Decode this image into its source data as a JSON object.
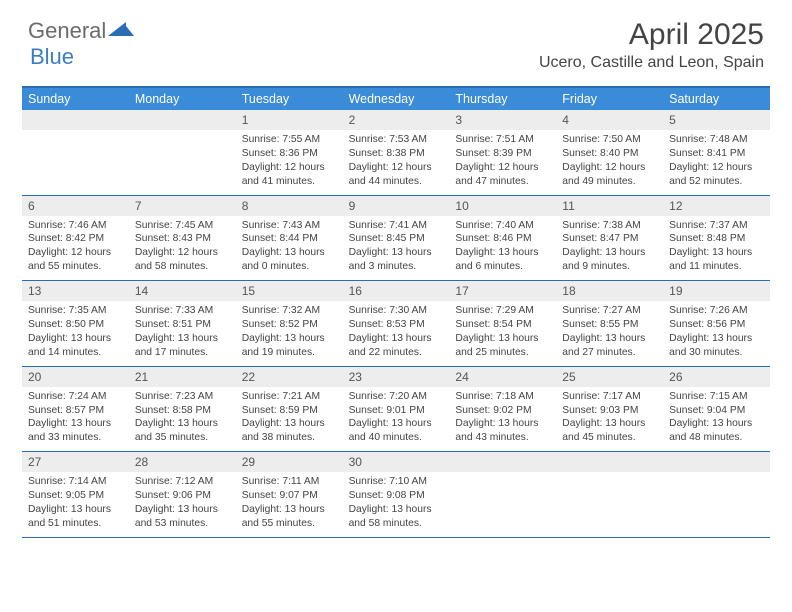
{
  "logo": {
    "text1": "General",
    "text2": "Blue"
  },
  "title": "April 2025",
  "location": "Ucero, Castille and Leon, Spain",
  "colors": {
    "header_bar": "#3a8bd8",
    "border": "#2a6db3",
    "daynum_bg": "#ededed",
    "text": "#444444",
    "logo_gray": "#6b6b6b",
    "logo_blue": "#3a7fc4"
  },
  "dow": [
    "Sunday",
    "Monday",
    "Tuesday",
    "Wednesday",
    "Thursday",
    "Friday",
    "Saturday"
  ],
  "weeks": [
    [
      {
        "n": "",
        "sr": "",
        "ss": "",
        "dl": ""
      },
      {
        "n": "",
        "sr": "",
        "ss": "",
        "dl": ""
      },
      {
        "n": "1",
        "sr": "7:55 AM",
        "ss": "8:36 PM",
        "dl": "12 hours and 41 minutes."
      },
      {
        "n": "2",
        "sr": "7:53 AM",
        "ss": "8:38 PM",
        "dl": "12 hours and 44 minutes."
      },
      {
        "n": "3",
        "sr": "7:51 AM",
        "ss": "8:39 PM",
        "dl": "12 hours and 47 minutes."
      },
      {
        "n": "4",
        "sr": "7:50 AM",
        "ss": "8:40 PM",
        "dl": "12 hours and 49 minutes."
      },
      {
        "n": "5",
        "sr": "7:48 AM",
        "ss": "8:41 PM",
        "dl": "12 hours and 52 minutes."
      }
    ],
    [
      {
        "n": "6",
        "sr": "7:46 AM",
        "ss": "8:42 PM",
        "dl": "12 hours and 55 minutes."
      },
      {
        "n": "7",
        "sr": "7:45 AM",
        "ss": "8:43 PM",
        "dl": "12 hours and 58 minutes."
      },
      {
        "n": "8",
        "sr": "7:43 AM",
        "ss": "8:44 PM",
        "dl": "13 hours and 0 minutes."
      },
      {
        "n": "9",
        "sr": "7:41 AM",
        "ss": "8:45 PM",
        "dl": "13 hours and 3 minutes."
      },
      {
        "n": "10",
        "sr": "7:40 AM",
        "ss": "8:46 PM",
        "dl": "13 hours and 6 minutes."
      },
      {
        "n": "11",
        "sr": "7:38 AM",
        "ss": "8:47 PM",
        "dl": "13 hours and 9 minutes."
      },
      {
        "n": "12",
        "sr": "7:37 AM",
        "ss": "8:48 PM",
        "dl": "13 hours and 11 minutes."
      }
    ],
    [
      {
        "n": "13",
        "sr": "7:35 AM",
        "ss": "8:50 PM",
        "dl": "13 hours and 14 minutes."
      },
      {
        "n": "14",
        "sr": "7:33 AM",
        "ss": "8:51 PM",
        "dl": "13 hours and 17 minutes."
      },
      {
        "n": "15",
        "sr": "7:32 AM",
        "ss": "8:52 PM",
        "dl": "13 hours and 19 minutes."
      },
      {
        "n": "16",
        "sr": "7:30 AM",
        "ss": "8:53 PM",
        "dl": "13 hours and 22 minutes."
      },
      {
        "n": "17",
        "sr": "7:29 AM",
        "ss": "8:54 PM",
        "dl": "13 hours and 25 minutes."
      },
      {
        "n": "18",
        "sr": "7:27 AM",
        "ss": "8:55 PM",
        "dl": "13 hours and 27 minutes."
      },
      {
        "n": "19",
        "sr": "7:26 AM",
        "ss": "8:56 PM",
        "dl": "13 hours and 30 minutes."
      }
    ],
    [
      {
        "n": "20",
        "sr": "7:24 AM",
        "ss": "8:57 PM",
        "dl": "13 hours and 33 minutes."
      },
      {
        "n": "21",
        "sr": "7:23 AM",
        "ss": "8:58 PM",
        "dl": "13 hours and 35 minutes."
      },
      {
        "n": "22",
        "sr": "7:21 AM",
        "ss": "8:59 PM",
        "dl": "13 hours and 38 minutes."
      },
      {
        "n": "23",
        "sr": "7:20 AM",
        "ss": "9:01 PM",
        "dl": "13 hours and 40 minutes."
      },
      {
        "n": "24",
        "sr": "7:18 AM",
        "ss": "9:02 PM",
        "dl": "13 hours and 43 minutes."
      },
      {
        "n": "25",
        "sr": "7:17 AM",
        "ss": "9:03 PM",
        "dl": "13 hours and 45 minutes."
      },
      {
        "n": "26",
        "sr": "7:15 AM",
        "ss": "9:04 PM",
        "dl": "13 hours and 48 minutes."
      }
    ],
    [
      {
        "n": "27",
        "sr": "7:14 AM",
        "ss": "9:05 PM",
        "dl": "13 hours and 51 minutes."
      },
      {
        "n": "28",
        "sr": "7:12 AM",
        "ss": "9:06 PM",
        "dl": "13 hours and 53 minutes."
      },
      {
        "n": "29",
        "sr": "7:11 AM",
        "ss": "9:07 PM",
        "dl": "13 hours and 55 minutes."
      },
      {
        "n": "30",
        "sr": "7:10 AM",
        "ss": "9:08 PM",
        "dl": "13 hours and 58 minutes."
      },
      {
        "n": "",
        "sr": "",
        "ss": "",
        "dl": ""
      },
      {
        "n": "",
        "sr": "",
        "ss": "",
        "dl": ""
      },
      {
        "n": "",
        "sr": "",
        "ss": "",
        "dl": ""
      }
    ]
  ],
  "labels": {
    "sunrise": "Sunrise: ",
    "sunset": "Sunset: ",
    "daylight": "Daylight: "
  }
}
